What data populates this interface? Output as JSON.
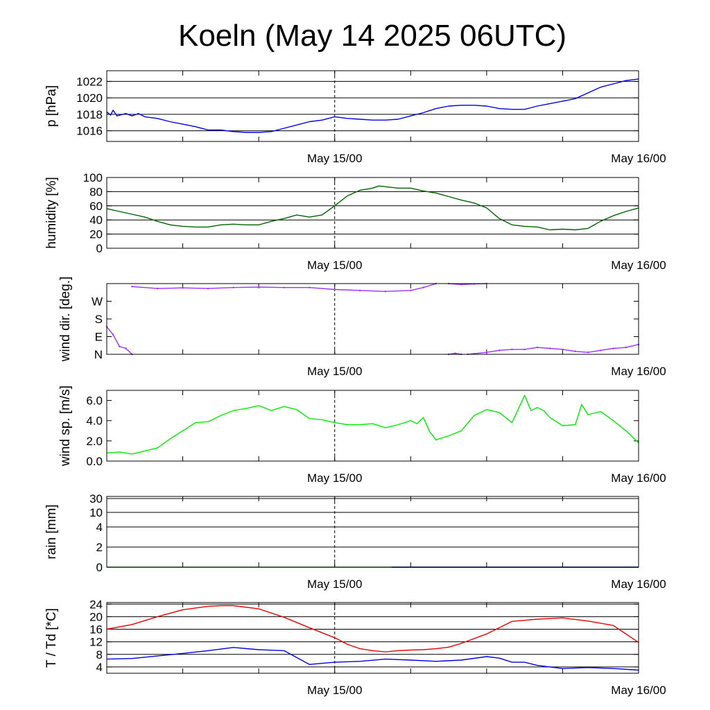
{
  "title": "Koeln (May 14 2025 06UTC)",
  "x_tick_labels": [
    "May 15/00",
    "May 16/00"
  ],
  "chart_data": [
    {
      "type": "line",
      "id": "pressure",
      "ylabel": "p [hPa]",
      "ylim": [
        1014.7,
        1023.3
      ],
      "yticks": [
        1016,
        1018,
        1020,
        1022
      ],
      "ytick_labels": [
        "1016",
        "1018",
        "1020",
        "1022"
      ],
      "grid": true,
      "xlim": [
        -18,
        24
      ],
      "color": "#0000ee",
      "x": [
        -18,
        -17.7,
        -17.5,
        -17.2,
        -16.5,
        -16,
        -15.5,
        -15,
        -14,
        -13,
        -12,
        -11,
        -10,
        -9,
        -8,
        -7,
        -6,
        -5,
        -4,
        -3,
        -2,
        -1,
        0,
        1,
        2,
        3,
        4,
        5,
        6,
        7,
        8,
        9,
        10,
        11,
        12,
        13,
        14,
        15,
        16,
        17,
        18,
        19,
        20,
        21,
        22,
        23,
        24
      ],
      "y": [
        1018.3,
        1017.9,
        1018.5,
        1017.8,
        1018.1,
        1017.8,
        1018.1,
        1017.7,
        1017.5,
        1017.1,
        1016.8,
        1016.5,
        1016.1,
        1016.1,
        1015.9,
        1015.8,
        1015.8,
        1015.9,
        1016.3,
        1016.7,
        1017.1,
        1017.3,
        1017.7,
        1017.5,
        1017.4,
        1017.3,
        1017.3,
        1017.4,
        1017.8,
        1018.2,
        1018.7,
        1019.0,
        1019.1,
        1019.1,
        1019.0,
        1018.7,
        1018.6,
        1018.6,
        1019.0,
        1019.3,
        1019.6,
        1019.9,
        1020.6,
        1021.3,
        1021.7,
        1022.1,
        1022.3
      ]
    },
    {
      "type": "line",
      "id": "humidity",
      "ylabel": "humidity [%]",
      "ylim": [
        0,
        100
      ],
      "yticks": [
        0,
        20,
        40,
        60,
        80,
        100
      ],
      "ytick_labels": [
        "0",
        "20",
        "40",
        "60",
        "80",
        "100"
      ],
      "grid": true,
      "xlim": [
        -18,
        24
      ],
      "color": "#006400",
      "x": [
        -18,
        -17,
        -16,
        -15,
        -14,
        -13,
        -12,
        -11,
        -10,
        -9,
        -8,
        -7,
        -6,
        -5,
        -4,
        -3,
        -2,
        -1,
        0,
        1,
        2,
        3,
        3.5,
        4,
        5,
        6,
        7,
        8,
        9,
        10,
        11,
        12,
        13,
        14,
        15,
        16,
        17,
        18,
        19,
        20,
        21,
        22,
        23,
        24
      ],
      "y": [
        56,
        52,
        48,
        44,
        38,
        33,
        31,
        30,
        30,
        33,
        34,
        33,
        33,
        38,
        42,
        47,
        44,
        47,
        60,
        74,
        82,
        85,
        88,
        87,
        85,
        85,
        81,
        78,
        73,
        68,
        64,
        57,
        42,
        33,
        31,
        30,
        26,
        27,
        26,
        28,
        38,
        46,
        52,
        57
      ]
    },
    {
      "type": "scatter",
      "id": "wind_direction",
      "ylabel": "wind dir. [deg.]",
      "ylim": [
        0,
        360
      ],
      "yticks": [
        0,
        90,
        180,
        270
      ],
      "ytick_labels": [
        "N",
        "E",
        "S",
        "W"
      ],
      "grid": false,
      "xlim": [
        -18,
        24
      ],
      "color": "#9b30ff",
      "segments": [
        {
          "x": [
            -18,
            -17.5,
            -17,
            -16.5,
            -16
          ],
          "y": [
            140,
            100,
            40,
            30,
            0
          ]
        },
        {
          "x": [
            -16,
            -14,
            -12,
            -10,
            -8,
            -6,
            -4,
            -2,
            0,
            2,
            4,
            6,
            7,
            8
          ],
          "y": [
            345,
            335,
            338,
            335,
            340,
            342,
            340,
            340,
            330,
            325,
            320,
            325,
            340,
            360
          ]
        },
        {
          "x": [
            9,
            10,
            11,
            12
          ],
          "y": [
            360,
            355,
            358,
            360
          ]
        },
        {
          "x": [
            9,
            9.5,
            10
          ],
          "y": [
            0,
            5,
            0
          ]
        },
        {
          "x": [
            10.5,
            11,
            12,
            13,
            14,
            15,
            16,
            17,
            18,
            19,
            20,
            21,
            22,
            23,
            24
          ],
          "y": [
            0,
            3,
            10,
            20,
            25,
            25,
            35,
            30,
            25,
            15,
            10,
            20,
            30,
            35,
            50
          ]
        }
      ]
    },
    {
      "type": "line",
      "id": "wind_speed",
      "ylabel": "wind sp. [m/s]",
      "ylim": [
        0,
        7.0
      ],
      "yticks": [
        0,
        2,
        4,
        6
      ],
      "ytick_labels": [
        "0.0",
        "2.0",
        "4.0",
        "6.0"
      ],
      "grid": false,
      "xlim": [
        -18,
        24
      ],
      "color": "#00ee00",
      "x": [
        -18,
        -17,
        -16,
        -15,
        -14,
        -13,
        -12,
        -11,
        -10,
        -9,
        -8,
        -7,
        -6,
        -5,
        -4,
        -3,
        -2,
        -1,
        0,
        1,
        2,
        3,
        4,
        5,
        6,
        6.5,
        7,
        7.5,
        8,
        9,
        10,
        11,
        12,
        13,
        14,
        15,
        15.5,
        16,
        16.5,
        17,
        18,
        19,
        19.5,
        20,
        21,
        22,
        23,
        24
      ],
      "y": [
        0.8,
        0.9,
        0.7,
        1.0,
        1.3,
        2.2,
        3.0,
        3.8,
        3.9,
        4.5,
        5.0,
        5.2,
        5.5,
        5.0,
        5.4,
        5.1,
        4.2,
        4.1,
        3.8,
        3.6,
        3.6,
        3.7,
        3.3,
        3.6,
        4.0,
        3.7,
        4.3,
        2.9,
        2.1,
        2.5,
        3.0,
        4.5,
        5.1,
        4.8,
        3.8,
        6.5,
        5.0,
        5.3,
        5.0,
        4.3,
        3.5,
        3.6,
        5.6,
        4.6,
        4.9,
        4.0,
        3.0,
        1.8
      ]
    },
    {
      "type": "line",
      "id": "rain",
      "ylabel": "rain [mm]",
      "ylim": [
        0,
        30
      ],
      "yticks": [
        0,
        2,
        4,
        10,
        30
      ],
      "ytick_labels": [
        "0",
        "2",
        "4",
        "10",
        "30"
      ],
      "grid": true,
      "xlim": [
        -18,
        24
      ],
      "series": [
        {
          "color": "#008000",
          "x": [
            -18,
            4.5,
            24
          ],
          "y": [
            0,
            0,
            0
          ]
        },
        {
          "color": "#0000ee",
          "x": [
            4.5,
            24
          ],
          "y": [
            0,
            0
          ]
        }
      ]
    },
    {
      "type": "line",
      "id": "temperature",
      "ylabel": "T / Td [*C]",
      "ylim": [
        2,
        24.5
      ],
      "yticks": [
        4,
        8,
        12,
        16,
        20,
        24
      ],
      "ytick_labels": [
        "4",
        "8",
        "12",
        "16",
        "20",
        "24"
      ],
      "grid": true,
      "xlim": [
        -18,
        24
      ],
      "series": [
        {
          "color": "#ee0000",
          "x": [
            -18,
            -16,
            -14,
            -12,
            -10,
            -9,
            -8,
            -6,
            -4,
            -2,
            0,
            1,
            2,
            3,
            4,
            5,
            6,
            7,
            8,
            9,
            10,
            12,
            13,
            14,
            16,
            18,
            20,
            22,
            24
          ],
          "y": [
            16,
            17.5,
            20,
            22.2,
            23.3,
            23.5,
            23.5,
            22.5,
            19.8,
            16.5,
            13.3,
            11.2,
            9.8,
            9.2,
            8.8,
            9.2,
            9.4,
            9.5,
            9.8,
            10.3,
            11.5,
            14.5,
            16.5,
            18.5,
            19.2,
            19.6,
            18.6,
            17.2,
            11.8
          ]
        },
        {
          "color": "#0000ee",
          "x": [
            -18,
            -16,
            -14,
            -12,
            -10,
            -8,
            -6,
            -4,
            -2,
            0,
            2,
            4,
            6,
            8,
            10,
            12,
            13,
            14,
            15,
            16,
            18,
            20,
            22,
            24
          ],
          "y": [
            6.5,
            6.7,
            7.5,
            8.3,
            9.2,
            10.2,
            9.5,
            9.2,
            4.8,
            5.5,
            5.8,
            6.5,
            6.2,
            5.8,
            6.2,
            7.3,
            6.8,
            5.5,
            5.5,
            4.5,
            3.5,
            3.8,
            3.5,
            3.0
          ]
        }
      ]
    }
  ]
}
